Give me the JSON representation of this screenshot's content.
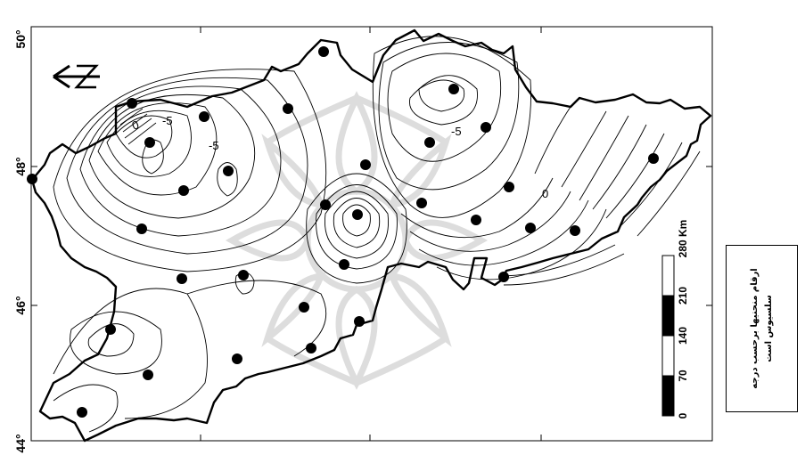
{
  "map": {
    "latitude_labels": [
      "50°",
      "48°",
      "46°",
      "44°"
    ],
    "contour_labels": [
      "-5",
      "-5",
      "-5",
      "0",
      "0"
    ],
    "north_arrow": "N",
    "scale_bar": {
      "unit": "Km",
      "ticks": [
        "0",
        "70",
        "140",
        "210",
        "280"
      ],
      "top_label": "280 Km"
    },
    "note": {
      "line1": "ارقام منحنیها برحسب درجه",
      "line2": "سلسیوس است"
    },
    "station_count": 34
  }
}
